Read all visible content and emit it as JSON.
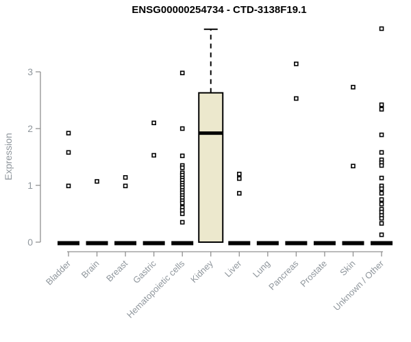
{
  "chart_data": {
    "type": "boxplot",
    "title": "ENSG00000254734 - CTD-3138F19.1",
    "ylabel": "Expression",
    "xlabel": "",
    "ylim": [
      0,
      3.8
    ],
    "yticks": [
      0,
      1,
      2,
      3
    ],
    "grid": false,
    "legend": "none",
    "categories": [
      "Bladder",
      "Brain",
      "Breast",
      "Gastric",
      "Hematopoietic cells",
      "Kidney",
      "Liver",
      "Lung",
      "Pancreas",
      "Prostate",
      "Skin",
      "Unknown / Other"
    ],
    "series": [
      {
        "name": "Bladder",
        "q1": 0,
        "median": 0,
        "q3": 0,
        "whisker_low": 0,
        "whisker_high": 0,
        "outliers": [
          1.92,
          1.58,
          0.99
        ]
      },
      {
        "name": "Brain",
        "q1": 0,
        "median": 0,
        "q3": 0,
        "whisker_low": 0,
        "whisker_high": 0,
        "outliers": [
          1.07
        ]
      },
      {
        "name": "Breast",
        "q1": 0,
        "median": 0,
        "q3": 0,
        "whisker_low": 0,
        "whisker_high": 0,
        "outliers": [
          1.14,
          0.99
        ]
      },
      {
        "name": "Gastric",
        "q1": 0,
        "median": 0,
        "q3": 0,
        "whisker_low": 0,
        "whisker_high": 0,
        "outliers": [
          2.1,
          1.53
        ]
      },
      {
        "name": "Hematopoietic cells",
        "q1": 0,
        "median": 0,
        "q3": 0,
        "whisker_low": 0,
        "whisker_high": 0,
        "outliers": [
          2.98,
          2.0,
          1.52,
          1.35,
          1.31,
          1.22,
          1.18,
          1.13,
          1.09,
          1.04,
          1.0,
          0.96,
          0.91,
          0.87,
          0.82,
          0.78,
          0.73,
          0.69,
          0.61,
          0.56,
          0.5,
          0.35
        ]
      },
      {
        "name": "Kidney",
        "q1": 0,
        "median": 1.92,
        "q3": 2.63,
        "whisker_low": 0,
        "whisker_high": 3.75,
        "outliers": []
      },
      {
        "name": "Liver",
        "q1": 0,
        "median": 0,
        "q3": 0,
        "whisker_low": 0,
        "whisker_high": 0,
        "outliers": [
          1.2,
          1.12,
          0.86
        ]
      },
      {
        "name": "Lung",
        "q1": 0,
        "median": 0,
        "q3": 0,
        "whisker_low": 0,
        "whisker_high": 0,
        "outliers": []
      },
      {
        "name": "Pancreas",
        "q1": 0,
        "median": 0,
        "q3": 0,
        "whisker_low": 0,
        "whisker_high": 0,
        "outliers": [
          3.14,
          2.53
        ]
      },
      {
        "name": "Prostate",
        "q1": 0,
        "median": 0,
        "q3": 0,
        "whisker_low": 0,
        "whisker_high": 0,
        "outliers": []
      },
      {
        "name": "Skin",
        "q1": 0,
        "median": 0,
        "q3": 0,
        "whisker_low": 0,
        "whisker_high": 0,
        "outliers": [
          2.73,
          1.34
        ]
      },
      {
        "name": "Unknown / Other",
        "q1": 0,
        "median": 0,
        "q3": 0,
        "whisker_low": 0,
        "whisker_high": 0,
        "outliers": [
          3.76,
          2.42,
          2.34,
          1.89,
          1.58,
          1.45,
          1.4,
          1.35,
          1.13,
          0.99,
          0.94,
          0.86,
          0.75,
          0.67,
          0.58,
          0.53,
          0.47,
          0.42,
          0.33,
          0.13
        ]
      }
    ],
    "colors": {
      "box_fill": "#ece8cd",
      "box_border": "#000000",
      "median": "#000000",
      "outlier_fill": "#ffffff",
      "outlier_border": "#000000",
      "axis_line": "#909090",
      "axis_text": "#8f969c",
      "title_text": "#000000",
      "background": "#ffffff"
    }
  }
}
